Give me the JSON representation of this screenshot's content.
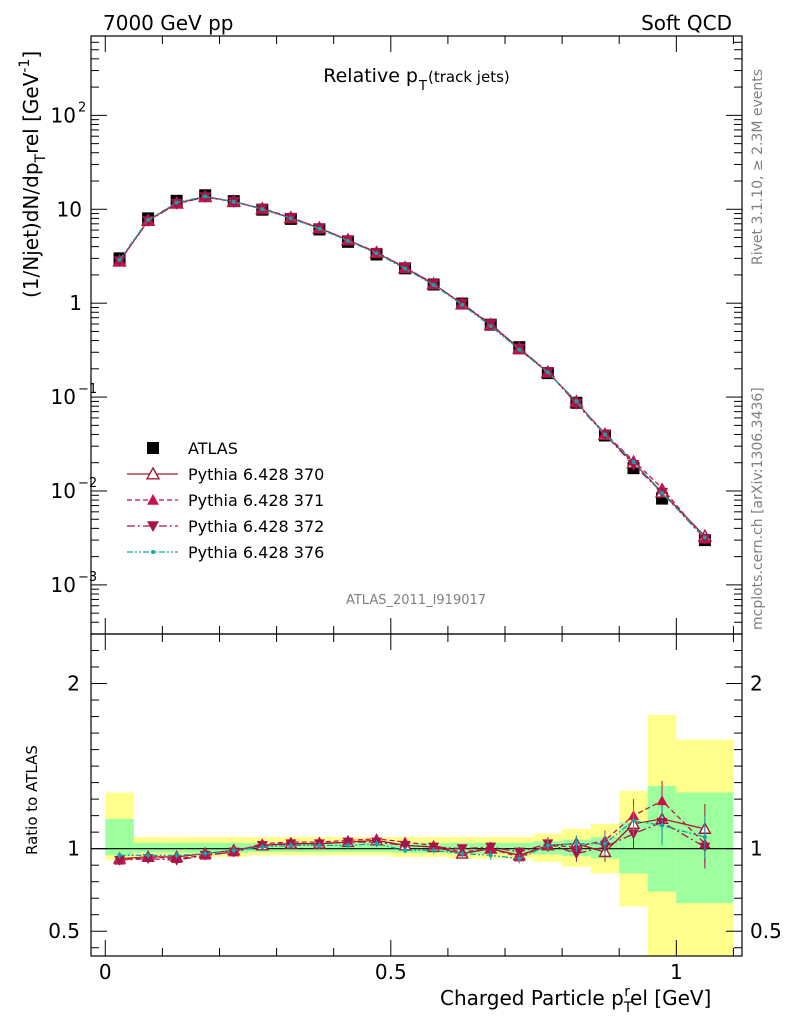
{
  "header": {
    "left": "7000 GeV pp",
    "right": "Soft QCD"
  },
  "side": {
    "rivet": "Rivet 3.1.10, ≥ 2.3M events",
    "mcplots": "mcplots.cern.ch [arXiv:1306.3436]"
  },
  "chart_data": [
    {
      "panel": "main",
      "type": "scatter",
      "title": "Relative p",
      "title_sub": "T",
      "title_suffix": " (track jets)",
      "ylabel": "(1/Njet)dN/dp",
      "ylabel_sub": "T",
      "ylabel_mid": "rel [GeV",
      "ylabel_sup": "-1",
      "ylabel_end": "]",
      "y_scale": "log",
      "ylim": [
        0.0003,
        700
      ],
      "xlim": [
        -0.025,
        1.115
      ],
      "y_ticks": [
        {
          "v": 100,
          "base": "10",
          "exp": "2"
        },
        {
          "v": 10,
          "base": "10",
          "exp": ""
        },
        {
          "v": 1,
          "base": "1",
          "exp": ""
        },
        {
          "v": 0.1,
          "base": "10",
          "exp": "−1"
        },
        {
          "v": 0.01,
          "base": "10",
          "exp": "−2"
        },
        {
          "v": 0.001,
          "base": "10",
          "exp": "−3"
        }
      ],
      "watermark": "ATLAS_2011_I919017",
      "legend_position": "lower-left",
      "x": [
        0.025,
        0.075,
        0.125,
        0.175,
        0.225,
        0.275,
        0.325,
        0.375,
        0.425,
        0.475,
        0.525,
        0.575,
        0.625,
        0.675,
        0.725,
        0.775,
        0.825,
        0.875,
        0.925,
        0.975,
        1.05
      ],
      "series": [
        {
          "name": "ATLAS",
          "color": "#000000",
          "marker": "square",
          "values": [
            3.0,
            8.0,
            12.3,
            14.1,
            12.2,
            9.9,
            7.9,
            6.1,
            4.5,
            3.3,
            2.35,
            1.58,
            0.99,
            0.59,
            0.34,
            0.18,
            0.087,
            0.039,
            0.0175,
            0.0083,
            0.003
          ]
        },
        {
          "name": "Pythia 6.428 370",
          "color": "#9e1b32",
          "marker": "triangle-up-open",
          "dash": "",
          "values": [
            2.8,
            7.6,
            11.6,
            13.6,
            12.1,
            10.1,
            8.1,
            6.3,
            4.7,
            3.45,
            2.38,
            1.6,
            0.98,
            0.59,
            0.33,
            0.184,
            0.089,
            0.04,
            0.02,
            0.0097,
            0.0033
          ]
        },
        {
          "name": "Pythia 6.428 371",
          "color": "#c8104e",
          "marker": "triangle-up-filled",
          "dash": "5,3",
          "values": [
            2.8,
            7.6,
            11.5,
            13.5,
            12.0,
            10.2,
            8.2,
            6.3,
            4.7,
            3.5,
            2.4,
            1.62,
            0.97,
            0.59,
            0.32,
            0.184,
            0.088,
            0.041,
            0.021,
            0.0107,
            0.0031
          ]
        },
        {
          "name": "Pythia 6.428 372",
          "color": "#a8144a",
          "marker": "triangle-down-filled",
          "dash": "8,3,2,3",
          "values": [
            2.8,
            7.5,
            11.4,
            13.5,
            12.0,
            10.1,
            8.1,
            6.3,
            4.7,
            3.45,
            2.4,
            1.6,
            0.99,
            0.6,
            0.33,
            0.186,
            0.085,
            0.04,
            0.019,
            0.0096,
            0.0031
          ]
        },
        {
          "name": "Pythia 6.428 376",
          "color": "#16a5a5",
          "marker": "dot",
          "dash": "6,2,2,2,2,2",
          "values": [
            2.9,
            7.7,
            11.8,
            13.7,
            12.0,
            10.0,
            8.0,
            6.2,
            4.6,
            3.4,
            2.33,
            1.56,
            0.96,
            0.57,
            0.32,
            0.183,
            0.09,
            0.04,
            0.0205,
            0.0095,
            0.0032
          ]
        }
      ]
    },
    {
      "panel": "ratio",
      "type": "line",
      "ylabel": "Ratio to ATLAS",
      "ylim": [
        0.35,
        2.3
      ],
      "xlim": [
        -0.025,
        1.115
      ],
      "y_ticks": [
        0.5,
        1,
        2
      ],
      "x_ticks": [
        0,
        0.5,
        1
      ],
      "x_tick_labels": [
        "0",
        "0.5",
        "1"
      ],
      "xlabel": "Charged Particle p",
      "xlabel_sub": "T",
      "xlabel_sup": "r",
      "xlabel_end": "el [GeV]",
      "bands": {
        "edges": [
          0,
          0.05,
          0.1,
          0.15,
          0.2,
          0.25,
          0.3,
          0.35,
          0.4,
          0.45,
          0.5,
          0.55,
          0.6,
          0.65,
          0.7,
          0.75,
          0.8,
          0.85,
          0.9,
          0.95,
          1.0,
          1.1
        ],
        "yellow": [
          [
            0.93,
            1.34
          ],
          [
            0.95,
            1.07
          ],
          [
            0.95,
            1.07
          ],
          [
            0.95,
            1.07
          ],
          [
            0.95,
            1.07
          ],
          [
            0.96,
            1.07
          ],
          [
            0.96,
            1.07
          ],
          [
            0.96,
            1.07
          ],
          [
            0.96,
            1.07
          ],
          [
            0.96,
            1.07
          ],
          [
            0.95,
            1.07
          ],
          [
            0.95,
            1.07
          ],
          [
            0.94,
            1.07
          ],
          [
            0.94,
            1.07
          ],
          [
            0.94,
            1.07
          ],
          [
            0.92,
            1.09
          ],
          [
            0.89,
            1.12
          ],
          [
            0.85,
            1.15
          ],
          [
            0.65,
            1.35
          ],
          [
            0.35,
            1.81
          ],
          [
            0.35,
            1.66
          ]
        ],
        "green": [
          [
            0.96,
            1.18
          ],
          [
            0.975,
            1.035
          ],
          [
            0.975,
            1.035
          ],
          [
            0.975,
            1.035
          ],
          [
            0.975,
            1.035
          ],
          [
            0.98,
            1.035
          ],
          [
            0.98,
            1.035
          ],
          [
            0.98,
            1.035
          ],
          [
            0.98,
            1.035
          ],
          [
            0.98,
            1.035
          ],
          [
            0.975,
            1.035
          ],
          [
            0.975,
            1.035
          ],
          [
            0.97,
            1.035
          ],
          [
            0.97,
            1.035
          ],
          [
            0.97,
            1.035
          ],
          [
            0.965,
            1.045
          ],
          [
            0.955,
            1.055
          ],
          [
            0.94,
            1.07
          ],
          [
            0.85,
            1.16
          ],
          [
            0.74,
            1.38
          ],
          [
            0.67,
            1.34
          ]
        ]
      },
      "series": [
        {
          "name": "Pythia 6.428 370",
          "values": [
            0.94,
            0.95,
            0.95,
            0.97,
            0.99,
            1.02,
            1.03,
            1.03,
            1.04,
            1.05,
            1.02,
            1.01,
            0.97,
            1.0,
            0.96,
            1.02,
            1.03,
            0.98,
            1.15,
            1.18,
            1.12
          ],
          "err": [
            0.02,
            0.02,
            0.02,
            0.02,
            0.02,
            0.02,
            0.02,
            0.02,
            0.02,
            0.02,
            0.02,
            0.02,
            0.02,
            0.02,
            0.03,
            0.04,
            0.05,
            0.06,
            0.1,
            0.12,
            0.15
          ]
        },
        {
          "name": "Pythia 6.428 371",
          "values": [
            0.93,
            0.95,
            0.94,
            0.96,
            0.98,
            1.03,
            1.04,
            1.04,
            1.05,
            1.06,
            1.04,
            1.02,
            0.98,
            1.0,
            0.95,
            1.02,
            1.01,
            1.05,
            1.2,
            1.29,
            1.03
          ],
          "err": [
            0.02,
            0.02,
            0.02,
            0.02,
            0.02,
            0.02,
            0.02,
            0.02,
            0.02,
            0.02,
            0.02,
            0.02,
            0.02,
            0.03,
            0.03,
            0.04,
            0.05,
            0.06,
            0.1,
            0.12,
            0.12
          ]
        },
        {
          "name": "Pythia 6.428 372",
          "values": [
            0.93,
            0.94,
            0.93,
            0.96,
            0.98,
            1.02,
            1.03,
            1.03,
            1.04,
            1.04,
            1.02,
            1.01,
            1.0,
            1.01,
            0.98,
            1.03,
            0.97,
            1.01,
            1.09,
            1.16,
            1.01
          ],
          "err": [
            0.02,
            0.02,
            0.02,
            0.02,
            0.02,
            0.02,
            0.02,
            0.02,
            0.02,
            0.02,
            0.02,
            0.02,
            0.02,
            0.03,
            0.03,
            0.04,
            0.05,
            0.06,
            0.09,
            0.12,
            0.13
          ]
        },
        {
          "name": "Pythia 6.428 376",
          "values": [
            0.96,
            0.96,
            0.96,
            0.97,
            0.99,
            1.01,
            1.02,
            1.02,
            1.02,
            1.03,
            0.99,
            0.99,
            0.97,
            0.96,
            0.94,
            1.02,
            1.03,
            1.03,
            1.17,
            1.14,
            1.07
          ],
          "err": [
            0.02,
            0.02,
            0.02,
            0.02,
            0.02,
            0.02,
            0.02,
            0.02,
            0.02,
            0.02,
            0.02,
            0.02,
            0.02,
            0.03,
            0.03,
            0.04,
            0.05,
            0.06,
            0.09,
            0.12,
            0.13
          ]
        }
      ]
    }
  ]
}
